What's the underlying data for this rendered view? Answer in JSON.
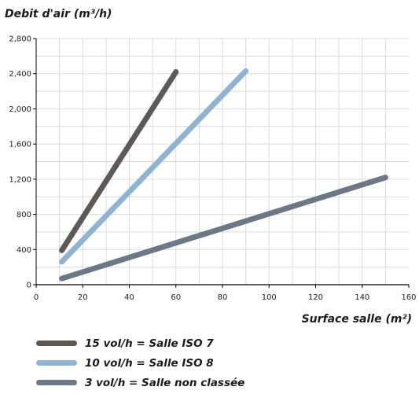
{
  "chart_data": {
    "type": "line",
    "ylabel": "Debit d'air (m³/h)",
    "xlabel": "Surface salle (m²)",
    "xlim": [
      0,
      160
    ],
    "ylim": [
      0,
      2800
    ],
    "x_ticks": [
      "0",
      "20",
      "40",
      "60",
      "80",
      "100",
      "120",
      "140",
      "160"
    ],
    "y_ticks": [
      "0",
      "400",
      "800",
      "1,200",
      "1,600",
      "2,000",
      "2,400",
      "2,800"
    ],
    "grid": true,
    "legend_position": "bottom-left",
    "series": [
      {
        "name": "15 vol/h = Salle ISO 7",
        "color": "#5e5956",
        "points": [
          [
            11,
            390
          ],
          [
            60,
            2420
          ]
        ]
      },
      {
        "name": "10 vol/h = Salle ISO 8",
        "color": "#8fb3d0",
        "points": [
          [
            11,
            260
          ],
          [
            90,
            2430
          ]
        ]
      },
      {
        "name": "3 vol/h = Salle non classée",
        "color": "#6d7886",
        "points": [
          [
            11,
            70
          ],
          [
            150,
            1220
          ]
        ]
      }
    ]
  }
}
